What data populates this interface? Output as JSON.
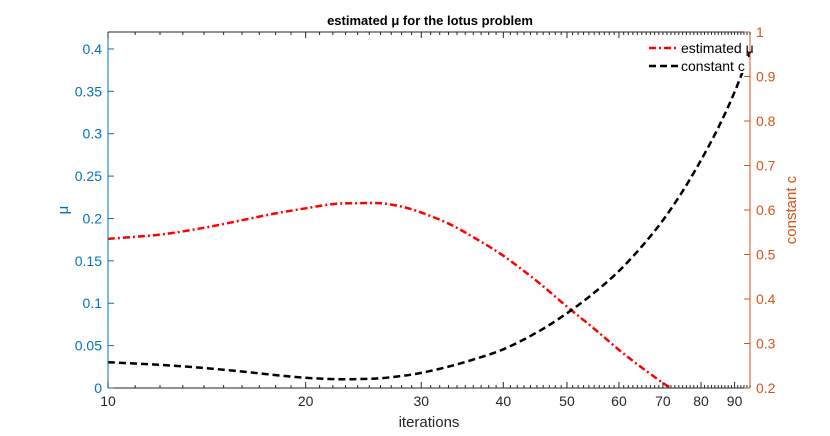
{
  "chart_data": {
    "type": "line",
    "title": "estimated μ for the lotus problem",
    "xlabel": "iterations",
    "ylabel_left": "μ",
    "ylabel_right": "constant c",
    "xscale": "log",
    "xlim": [
      10,
      95
    ],
    "ylim_left": [
      0,
      0.42
    ],
    "ylim_right": [
      0.2,
      1.0
    ],
    "x_ticks": [
      10,
      20,
      30,
      40,
      50,
      60,
      70,
      80,
      90
    ],
    "x_tick_labels": [
      "10",
      "20",
      "30",
      "40",
      "50",
      "60",
      "70",
      "80",
      "90"
    ],
    "y_left_ticks": [
      0,
      0.05,
      0.1,
      0.15,
      0.2,
      0.25,
      0.3,
      0.35,
      0.4
    ],
    "y_left_tick_labels": [
      "0",
      "0.05",
      "0.1",
      "0.15",
      "0.2",
      "0.25",
      "0.3",
      "0.35",
      "0.4"
    ],
    "y_right_ticks": [
      0.2,
      0.3,
      0.4,
      0.5,
      0.6,
      0.7,
      0.8,
      0.9,
      1.0
    ],
    "y_right_tick_labels": [
      "0.2",
      "0.3",
      "0.4",
      "0.5",
      "0.6",
      "0.7",
      "0.8",
      "0.9",
      "1"
    ],
    "grid": false,
    "legend_position": "top-right",
    "series": [
      {
        "name": "estimated μ",
        "axis": "left",
        "color": "#ff0000",
        "style": "dash-dot",
        "x": [
          10,
          12,
          14,
          16,
          18,
          20,
          22,
          24,
          26,
          28,
          30,
          33,
          36,
          40,
          45,
          50,
          55,
          60,
          65,
          70,
          72
        ],
        "y": [
          0.176,
          0.181,
          0.189,
          0.198,
          0.206,
          0.212,
          0.217,
          0.218,
          0.218,
          0.214,
          0.207,
          0.194,
          0.178,
          0.156,
          0.126,
          0.096,
          0.07,
          0.045,
          0.024,
          0.006,
          0.0
        ]
      },
      {
        "name": "constant c",
        "axis": "right",
        "color": "#000000",
        "style": "dashed",
        "x": [
          10,
          12,
          14,
          16,
          18,
          20,
          22,
          24,
          26,
          28,
          30,
          33,
          36,
          40,
          45,
          50,
          55,
          60,
          65,
          70,
          75,
          80,
          85,
          90,
          95
        ],
        "y": [
          0.258,
          0.252,
          0.245,
          0.237,
          0.229,
          0.223,
          0.22,
          0.22,
          0.222,
          0.227,
          0.234,
          0.248,
          0.264,
          0.287,
          0.325,
          0.368,
          0.414,
          0.463,
          0.518,
          0.577,
          0.642,
          0.712,
          0.785,
          0.865,
          0.955
        ]
      }
    ]
  }
}
